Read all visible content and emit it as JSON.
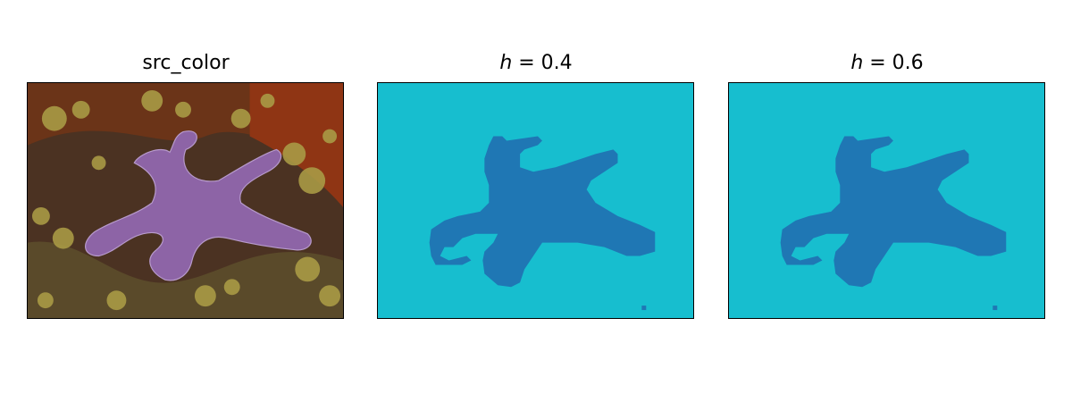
{
  "panels": [
    {
      "title": "src_color"
    },
    {
      "title_var": "h",
      "title_rest": " = 0.4"
    },
    {
      "title_var": "h",
      "title_rest": " = 0.6"
    }
  ],
  "colors": {
    "background_region": "#17becf",
    "object_region": "#1f77b4",
    "starfish": "#8d64a6",
    "rock": "#5c3b28",
    "rust": "#8f3514",
    "barnacle": "#b0a24a"
  }
}
